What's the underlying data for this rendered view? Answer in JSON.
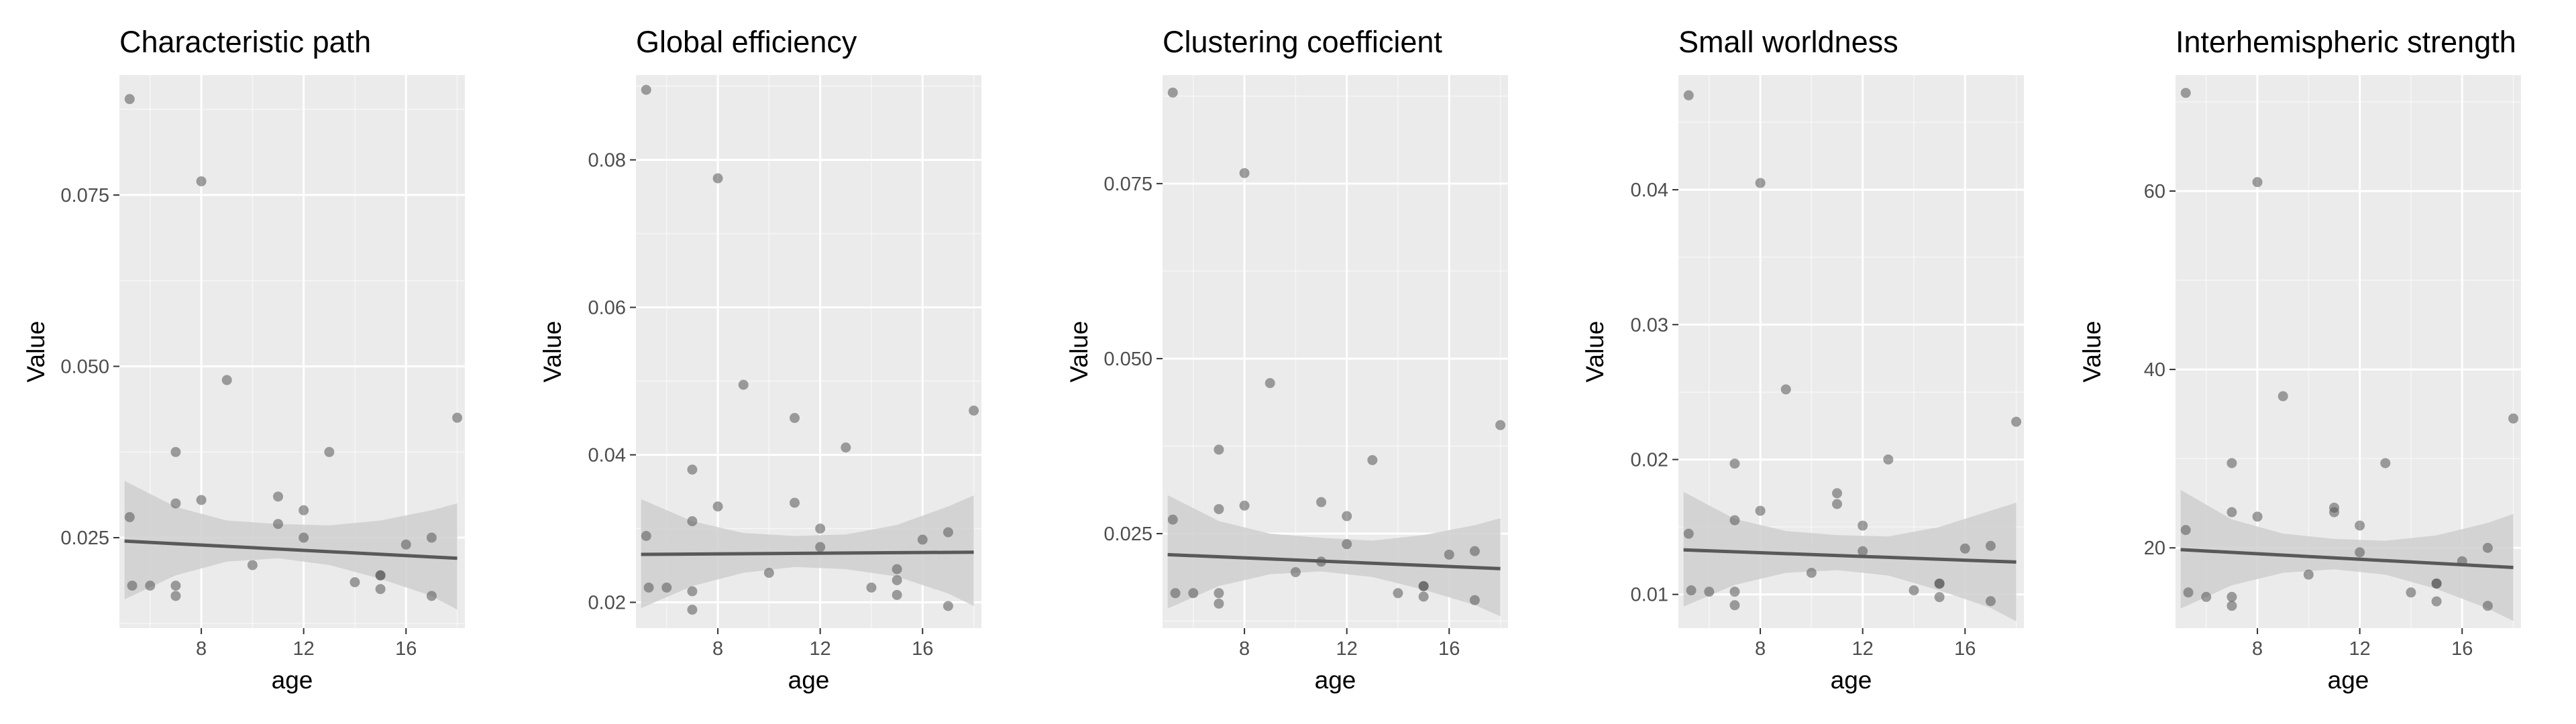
{
  "figure": {
    "shared_x_label": "age",
    "shared_y_label": "Value",
    "colors": {
      "panel_background": "#ebebeb",
      "grid_major": "#ffffff",
      "points": "#555555",
      "fit_line": "#595959",
      "ribbon": "#cfcfcf",
      "tick_label": "#4d4d4d",
      "title_text": "#000000"
    }
  },
  "chart_data": [
    {
      "type": "scatter",
      "title": "Characteristic path",
      "xlabel": "age",
      "ylabel": "Value",
      "xlim": [
        4.8,
        18.3
      ],
      "ylim": [
        0.0118,
        0.0925
      ],
      "x_ticks": [
        {
          "v": 8,
          "label": "8"
        },
        {
          "v": 12,
          "label": "12"
        },
        {
          "v": 16,
          "label": "16"
        }
      ],
      "y_ticks": [
        {
          "v": 0.025,
          "label": "0.025"
        },
        {
          "v": 0.05,
          "label": "0.050"
        },
        {
          "v": 0.075,
          "label": "0.075"
        }
      ],
      "points": [
        [
          5.2,
          0.089
        ],
        [
          5.2,
          0.028
        ],
        [
          5.3,
          0.018
        ],
        [
          6.0,
          0.018
        ],
        [
          7.0,
          0.018
        ],
        [
          7.0,
          0.0165
        ],
        [
          7.0,
          0.0375
        ],
        [
          7.0,
          0.03
        ],
        [
          8.0,
          0.077
        ],
        [
          8.0,
          0.0305
        ],
        [
          9.0,
          0.048
        ],
        [
          10.0,
          0.021
        ],
        [
          11.0,
          0.027
        ],
        [
          11.0,
          0.031
        ],
        [
          12.0,
          0.029
        ],
        [
          12.0,
          0.025
        ],
        [
          13.0,
          0.0375
        ],
        [
          14.0,
          0.0185
        ],
        [
          15.0,
          0.0195
        ],
        [
          15.0,
          0.0195
        ],
        [
          15.0,
          0.0175
        ],
        [
          16.0,
          0.024
        ],
        [
          17.0,
          0.0165
        ],
        [
          17.0,
          0.025
        ],
        [
          18.0,
          0.0425
        ]
      ],
      "fit": {
        "x": [
          5,
          18
        ],
        "y": [
          0.0245,
          0.022
        ]
      },
      "ribbon": {
        "x": [
          5,
          7,
          9,
          11,
          13,
          15,
          17,
          18
        ],
        "lower": [
          0.016,
          0.0195,
          0.0215,
          0.022,
          0.021,
          0.019,
          0.0165,
          0.0145
        ],
        "upper": [
          0.0333,
          0.0295,
          0.0275,
          0.027,
          0.0268,
          0.0275,
          0.029,
          0.03
        ]
      }
    },
    {
      "type": "scatter",
      "title": "Global efficiency",
      "xlabel": "age",
      "ylabel": "Value",
      "xlim": [
        4.8,
        18.3
      ],
      "ylim": [
        0.0165,
        0.0915
      ],
      "x_ticks": [
        {
          "v": 8,
          "label": "8"
        },
        {
          "v": 12,
          "label": "12"
        },
        {
          "v": 16,
          "label": "16"
        }
      ],
      "y_ticks": [
        {
          "v": 0.02,
          "label": "0.02"
        },
        {
          "v": 0.04,
          "label": "0.04"
        },
        {
          "v": 0.06,
          "label": "0.06"
        },
        {
          "v": 0.08,
          "label": "0.08"
        }
      ],
      "points": [
        [
          5.2,
          0.0895
        ],
        [
          5.2,
          0.029
        ],
        [
          5.3,
          0.022
        ],
        [
          6.0,
          0.022
        ],
        [
          7.0,
          0.0215
        ],
        [
          7.0,
          0.019
        ],
        [
          7.0,
          0.038
        ],
        [
          7.0,
          0.031
        ],
        [
          8.0,
          0.0775
        ],
        [
          8.0,
          0.033
        ],
        [
          9.0,
          0.0495
        ],
        [
          10.0,
          0.024
        ],
        [
          11.0,
          0.045
        ],
        [
          11.0,
          0.0335
        ],
        [
          12.0,
          0.03
        ],
        [
          12.0,
          0.0275
        ],
        [
          13.0,
          0.041
        ],
        [
          14.0,
          0.022
        ],
        [
          15.0,
          0.0245
        ],
        [
          15.0,
          0.023
        ],
        [
          15.0,
          0.021
        ],
        [
          16.0,
          0.0285
        ],
        [
          17.0,
          0.0195
        ],
        [
          17.0,
          0.0295
        ],
        [
          18.0,
          0.046
        ]
      ],
      "fit": {
        "x": [
          5,
          18
        ],
        "y": [
          0.0265,
          0.0268
        ]
      },
      "ribbon": {
        "x": [
          5,
          7,
          9,
          11,
          13,
          15,
          17,
          18
        ],
        "lower": [
          0.0192,
          0.0222,
          0.024,
          0.0248,
          0.0245,
          0.0235,
          0.0212,
          0.0195
        ],
        "upper": [
          0.034,
          0.031,
          0.0294,
          0.029,
          0.0292,
          0.0305,
          0.033,
          0.0345
        ]
      }
    },
    {
      "type": "scatter",
      "title": "Clustering coefficient",
      "xlabel": "age",
      "ylabel": "Value",
      "xlim": [
        4.8,
        18.3
      ],
      "ylim": [
        0.0115,
        0.0905
      ],
      "x_ticks": [
        {
          "v": 8,
          "label": "8"
        },
        {
          "v": 12,
          "label": "12"
        },
        {
          "v": 16,
          "label": "16"
        }
      ],
      "y_ticks": [
        {
          "v": 0.025,
          "label": "0.025"
        },
        {
          "v": 0.05,
          "label": "0.050"
        },
        {
          "v": 0.075,
          "label": "0.075"
        }
      ],
      "points": [
        [
          5.2,
          0.088
        ],
        [
          5.2,
          0.027
        ],
        [
          5.3,
          0.0165
        ],
        [
          6.0,
          0.0165
        ],
        [
          7.0,
          0.0165
        ],
        [
          7.0,
          0.015
        ],
        [
          7.0,
          0.037
        ],
        [
          7.0,
          0.0285
        ],
        [
          8.0,
          0.0765
        ],
        [
          8.0,
          0.029
        ],
        [
          9.0,
          0.0465
        ],
        [
          10.0,
          0.0195
        ],
        [
          11.0,
          0.0295
        ],
        [
          11.0,
          0.021
        ],
        [
          12.0,
          0.0275
        ],
        [
          12.0,
          0.0235
        ],
        [
          13.0,
          0.0355
        ],
        [
          14.0,
          0.0165
        ],
        [
          15.0,
          0.0175
        ],
        [
          15.0,
          0.0175
        ],
        [
          15.0,
          0.016
        ],
        [
          16.0,
          0.022
        ],
        [
          17.0,
          0.0155
        ],
        [
          17.0,
          0.0225
        ],
        [
          18.0,
          0.0405
        ]
      ],
      "fit": {
        "x": [
          5,
          18
        ],
        "y": [
          0.022,
          0.02
        ]
      },
      "ribbon": {
        "x": [
          5,
          7,
          9,
          11,
          13,
          15,
          17,
          18
        ],
        "lower": [
          0.0143,
          0.0175,
          0.0192,
          0.0196,
          0.0188,
          0.017,
          0.0148,
          0.0132
        ],
        "upper": [
          0.0305,
          0.0268,
          0.025,
          0.0244,
          0.024,
          0.0248,
          0.0262,
          0.0272
        ]
      }
    },
    {
      "type": "scatter",
      "title": "Small worldness",
      "xlabel": "age",
      "ylabel": "Value",
      "xlim": [
        4.8,
        18.3
      ],
      "ylim": [
        0.0075,
        0.0485
      ],
      "x_ticks": [
        {
          "v": 8,
          "label": "8"
        },
        {
          "v": 12,
          "label": "12"
        },
        {
          "v": 16,
          "label": "16"
        }
      ],
      "y_ticks": [
        {
          "v": 0.01,
          "label": "0.01"
        },
        {
          "v": 0.02,
          "label": "0.02"
        },
        {
          "v": 0.03,
          "label": "0.03"
        },
        {
          "v": 0.04,
          "label": "0.04"
        }
      ],
      "points": [
        [
          5.2,
          0.047
        ],
        [
          5.2,
          0.0145
        ],
        [
          5.3,
          0.0103
        ],
        [
          6.0,
          0.0102
        ],
        [
          7.0,
          0.0102
        ],
        [
          7.0,
          0.0092
        ],
        [
          7.0,
          0.0197
        ],
        [
          7.0,
          0.0155
        ],
        [
          8.0,
          0.0405
        ],
        [
          8.0,
          0.0162
        ],
        [
          9.0,
          0.0252
        ],
        [
          10.0,
          0.0116
        ],
        [
          11.0,
          0.0175
        ],
        [
          11.0,
          0.0167
        ],
        [
          12.0,
          0.0151
        ],
        [
          12.0,
          0.0132
        ],
        [
          13.0,
          0.02
        ],
        [
          14.0,
          0.0103
        ],
        [
          15.0,
          0.0108
        ],
        [
          15.0,
          0.0108
        ],
        [
          15.0,
          0.0098
        ],
        [
          16.0,
          0.0134
        ],
        [
          17.0,
          0.0095
        ],
        [
          17.0,
          0.0136
        ],
        [
          18.0,
          0.0228
        ]
      ],
      "fit": {
        "x": [
          5,
          18
        ],
        "y": [
          0.0133,
          0.0124
        ]
      },
      "ribbon": {
        "x": [
          5,
          7,
          9,
          11,
          13,
          15,
          17,
          18
        ],
        "lower": [
          0.0091,
          0.0107,
          0.0116,
          0.0118,
          0.0114,
          0.0103,
          0.009,
          0.008
        ],
        "upper": [
          0.0176,
          0.0156,
          0.0147,
          0.0144,
          0.0143,
          0.015,
          0.0162,
          0.0168
        ]
      }
    },
    {
      "type": "scatter",
      "title": "Interhemispheric strength",
      "xlabel": "age",
      "ylabel": "Value",
      "xlim": [
        4.8,
        18.3
      ],
      "ylim": [
        11,
        73
      ],
      "x_ticks": [
        {
          "v": 8,
          "label": "8"
        },
        {
          "v": 12,
          "label": "12"
        },
        {
          "v": 16,
          "label": "16"
        }
      ],
      "y_ticks": [
        {
          "v": 20,
          "label": "20"
        },
        {
          "v": 40,
          "label": "40"
        },
        {
          "v": 60,
          "label": "60"
        }
      ],
      "points": [
        [
          5.2,
          71
        ],
        [
          5.2,
          22
        ],
        [
          5.3,
          15
        ],
        [
          6.0,
          14.5
        ],
        [
          7.0,
          14.5
        ],
        [
          7.0,
          13.5
        ],
        [
          7.0,
          29.5
        ],
        [
          7.0,
          24
        ],
        [
          8.0,
          61
        ],
        [
          8.0,
          23.5
        ],
        [
          9.0,
          37
        ],
        [
          10.0,
          17
        ],
        [
          11.0,
          24
        ],
        [
          11.0,
          24.5
        ],
        [
          12.0,
          22.5
        ],
        [
          12.0,
          19.5
        ],
        [
          13.0,
          29.5
        ],
        [
          14.0,
          15
        ],
        [
          15.0,
          16
        ],
        [
          15.0,
          16
        ],
        [
          15.0,
          14
        ],
        [
          16.0,
          18.5
        ],
        [
          17.0,
          13.5
        ],
        [
          17.0,
          20
        ],
        [
          18.0,
          34.5
        ]
      ],
      "fit": {
        "x": [
          5,
          18
        ],
        "y": [
          19.8,
          17.8
        ]
      },
      "ribbon": {
        "x": [
          5,
          7,
          9,
          11,
          13,
          15,
          17,
          18
        ],
        "lower": [
          13.2,
          15.8,
          17.2,
          17.6,
          17.0,
          15.4,
          13.2,
          11.8
        ],
        "upper": [
          26.5,
          23.2,
          21.6,
          21.0,
          20.8,
          21.4,
          22.8,
          23.8
        ]
      }
    }
  ]
}
